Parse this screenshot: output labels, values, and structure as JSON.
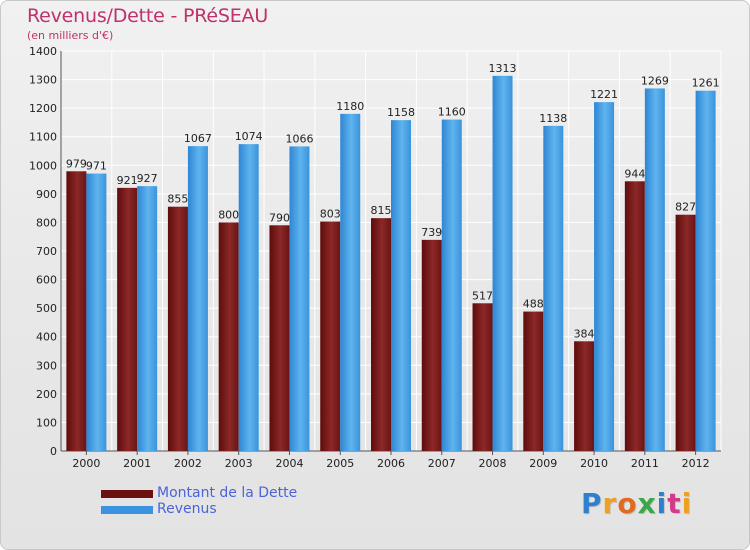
{
  "title": "Revenus/Dette - PRéSEAU",
  "subtitle": "(en milliers d'€)",
  "brand": {
    "letters": [
      "P",
      "r",
      "o",
      "x",
      "i",
      "t",
      "i"
    ],
    "colors": [
      "#2f7fd0",
      "#f0a020",
      "#e06a20",
      "#3aa84a",
      "#2f7fd0",
      "#d23a8a",
      "#f0a020"
    ]
  },
  "colors": {
    "dette": "#7a1a1a",
    "dette_light": "#8e2a2a",
    "revenus": "#3a93dc",
    "revenus_light": "#62b6ee",
    "title": "#c0306a"
  },
  "chart_data": {
    "type": "bar",
    "categories": [
      "2000",
      "2001",
      "2002",
      "2003",
      "2004",
      "2005",
      "2006",
      "2007",
      "2008",
      "2009",
      "2010",
      "2011",
      "2012"
    ],
    "series": [
      {
        "name": "Montant de la Dette",
        "values": [
          979,
          921,
          855,
          800,
          790,
          803,
          815,
          739,
          517,
          488,
          384,
          944,
          827
        ]
      },
      {
        "name": "Revenus",
        "values": [
          971,
          927,
          1067,
          1074,
          1066,
          1180,
          1158,
          1160,
          1313,
          1138,
          1221,
          1269,
          1261
        ]
      }
    ],
    "yticks": [
      0,
      100,
      200,
      300,
      400,
      500,
      600,
      700,
      800,
      900,
      1000,
      1100,
      1200,
      1300,
      1400
    ],
    "ylim": [
      0,
      1400
    ],
    "grid": true,
    "legend_position": "bottom-left"
  }
}
